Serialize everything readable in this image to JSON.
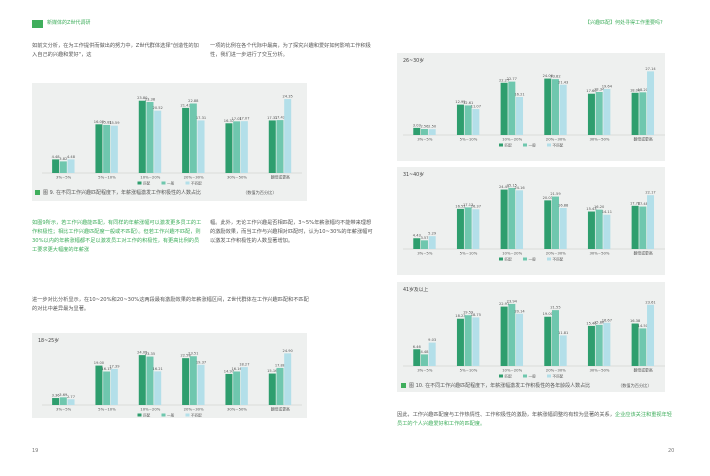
{
  "header": {
    "left_title": "新媒体的Z世代调研",
    "right_title": "【兴趣匹配】何处寻得工作重要吗?"
  },
  "left_page": {
    "para1_col1": "如前文分析，在为工作提供而做出的努力中，Z世代群体选择\"创造性的加入自己的兴趣和爱好\"，这",
    "para1_col2": "一项的比例在各个代际中最高，为了探究兴趣和爱好如何影响工作积极性，我们进一步进行了交互分析。",
    "para2_col1": "如图9所示，若工作兴趣能匹配，有同样的年薪涨幅可以激发更多员工的工作积极性；相比工作兴趣匹配度一般或不匹配）。但若工作兴趣不匹配，则30%以内的年薪涨幅都不足以激发员工对工作的积极性，有更高比例的员工要求更大幅度的年薪涨",
    "para2_col2": "幅。此外，无论工作兴趣是否相匹配，3~5%年薪涨幅均不能带来理想的激励效果，而当工作与兴趣相对匹配时，认为10~30%的年薪涨幅可以激发工作积极性的人数显著增加。",
    "para3": "进一步对比分析显示，在10~20%和20~30%这两段最有激励效果的年薪涨幅区间，Z世代群体在工作兴趣匹配和不匹配的对比中差异最为显著。",
    "page_number": "19"
  },
  "right_page": {
    "para_final_a": "因此，工作兴趣匹配度与工作热情性、工作积极性的激励，年薪涨幅调整均有较为显著的关系，",
    "para_final_b": "企业应该关注和重视年轻员工的个人兴趣爱好和工作的匹配度。",
    "page_number": "20"
  },
  "legend": {
    "a": "匹配",
    "b": "一般",
    "c": "不匹配"
  },
  "captions": {
    "fig9": "图 9. 在不同工作兴趣匹配程度下，年薪涨幅激发工作积极性的人数占比",
    "fig9_note": "（数值为百分比）",
    "fig10": "图 10. 在不同工作兴趣匹配程度下，年薪涨幅激发工作积极性的各年龄段人数占比",
    "fig10_note": "（数值为百分比）"
  },
  "colors": {
    "a": "#2e9e6e",
    "b": "#6fc7ae",
    "c": "#b3dfe9",
    "panel_bg": "#eef0ef",
    "accent": "#3fae5c"
  },
  "chart_data": [
    {
      "id": "fig9",
      "type": "bar",
      "title": "",
      "categories": [
        "3%~5%",
        "5%~10%",
        "10%~20%",
        "20%~30%",
        "30%~50%",
        "翻倍或更高"
      ],
      "series": [
        {
          "name": "匹配",
          "values": [
            4.48,
            16.03,
            23.8,
            21.43,
            16.37,
            17.31
          ]
        },
        {
          "name": "一般",
          "values": [
            3.82,
            15.81,
            23.38,
            22.88,
            17.01,
            17.42
          ]
        },
        {
          "name": "不匹配",
          "values": [
            4.48,
            15.59,
            20.52,
            17.31,
            17.07,
            24.35
          ]
        }
      ],
      "ylim": [
        0,
        27
      ]
    },
    {
      "id": "fig-18-25",
      "type": "bar",
      "title": "18~25岁",
      "categories": [
        "3%~5%",
        "5%~10%",
        "10%~20%",
        "20%~30%",
        "30%~50%",
        "翻倍或更高"
      ],
      "series": [
        {
          "name": "匹配",
          "values": [
            3.36,
            19.0,
            24.05,
            22.58,
            14.97,
            15.16
          ]
        },
        {
          "name": "一般",
          "values": [
            3.69,
            16.15,
            23.35,
            23.51,
            16.16,
            17.88
          ]
        },
        {
          "name": "不匹配",
          "values": [
            2.77,
            17.39,
            16.21,
            19.37,
            18.27,
            24.9
          ]
        }
      ],
      "ylim": [
        0,
        27
      ]
    },
    {
      "id": "fig-26-30",
      "type": "bar",
      "title": "26~30岁",
      "categories": [
        "3%~5%",
        "5%~10%",
        "10%~20%",
        "20%~30%",
        "30%~50%",
        "翻倍或更高"
      ],
      "series": [
        {
          "name": "匹配",
          "values": [
            3.03,
            12.95,
            22.27,
            24.06,
            17.6,
            18.0
          ]
        },
        {
          "name": "一般",
          "values": [
            2.56,
            12.61,
            22.77,
            23.82,
            18.34,
            18.2
          ]
        },
        {
          "name": "不匹配",
          "values": [
            2.5,
            11.07,
            16.21,
            21.43,
            19.64,
            27.14
          ]
        }
      ],
      "ylim": [
        0,
        29
      ]
    },
    {
      "id": "fig-31-40",
      "type": "bar",
      "title": "31~40岁",
      "categories": [
        "3%~5%",
        "5%~10%",
        "10%~20%",
        "20%~30%",
        "30%~50%",
        "翻倍或更高"
      ],
      "series": [
        {
          "name": "匹配",
          "values": [
            4.43,
            16.52,
            24.47,
            20.03,
            15.43,
            17.78
          ]
        },
        {
          "name": "一般",
          "values": [
            3.57,
            17.13,
            25.15,
            21.59,
            16.2,
            17.48
          ]
        },
        {
          "name": "不匹配",
          "values": [
            5.29,
            16.37,
            24.16,
            16.88,
            14.11,
            22.17
          ]
        }
      ],
      "ylim": [
        0,
        28
      ]
    },
    {
      "id": "fig-41",
      "type": "bar",
      "title": "41岁及以上",
      "categories": [
        "3%~5%",
        "5%~10%",
        "10%~20%",
        "20%~30%",
        "30%~50%",
        "翻倍或更高"
      ],
      "series": [
        {
          "name": "匹配",
          "values": [
            6.46,
            18.23,
            22.91,
            19.0,
            15.46,
            16.38
          ]
        },
        {
          "name": "一般",
          "values": [
            4.48,
            19.59,
            23.94,
            21.55,
            15.86,
            14.5
          ]
        },
        {
          "name": "不匹配",
          "values": [
            9.03,
            18.75,
            20.14,
            11.81,
            16.67,
            23.61
          ]
        }
      ],
      "ylim": [
        0,
        27
      ]
    }
  ]
}
